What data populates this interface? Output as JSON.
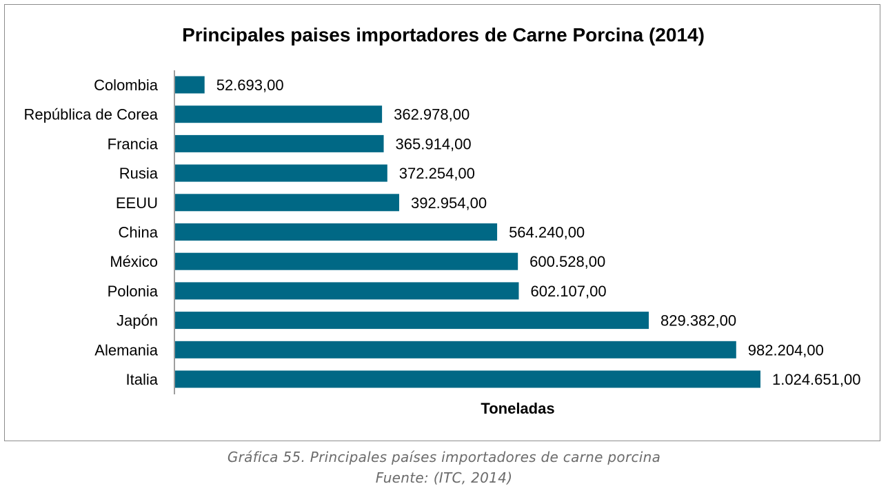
{
  "chart_data": {
    "type": "bar",
    "orientation": "horizontal",
    "title": "Principales paises importadores de Carne Porcina (2014)",
    "xlabel": "Toneladas",
    "ylabel": "",
    "categories": [
      "Colombia",
      "República de Corea",
      "Francia",
      "Rusia",
      "EEUU",
      "China",
      "México",
      "Polonia",
      "Japón",
      "Alemania",
      "Italia"
    ],
    "values": [
      52693,
      362978,
      365914,
      372254,
      392954,
      564240,
      600528,
      602107,
      829382,
      982204,
      1024651
    ],
    "value_labels": [
      "52.693,00",
      "362.978,00",
      "365.914,00",
      "372.254,00",
      "392.954,00",
      "564.240,00",
      "600.528,00",
      "602.107,00",
      "829.382,00",
      "982.204,00",
      "1.024.651,00"
    ],
    "xlim": [
      0,
      1024651
    ],
    "bar_color": "#006885",
    "grid": false,
    "legend": "none"
  },
  "caption": {
    "line1": "Gráfica 55. Principales países importadores de carne porcina",
    "line2": "Fuente: (ITC, 2014)"
  }
}
